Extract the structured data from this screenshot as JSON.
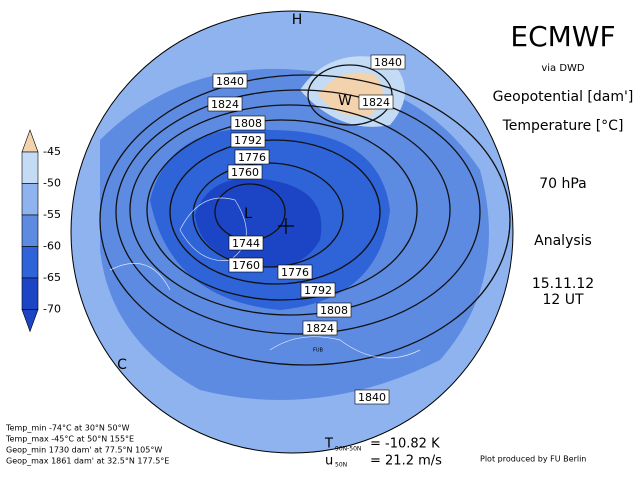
{
  "header": {
    "title": "ECMWF",
    "source": "via DWD",
    "field1": "Geopotential [dam']",
    "field2": "Temperature [°C]",
    "level": "70 hPa",
    "kind": "Analysis",
    "date": "15.11.12",
    "time": "12 UT"
  },
  "legend": {
    "levels": [
      -45,
      -50,
      -55,
      -60,
      -65,
      -70
    ],
    "colors": [
      "#f3d3ad",
      "#c4dbf6",
      "#8fb3ee",
      "#5d8be2",
      "#2f63d8",
      "#1c45c6"
    ]
  },
  "map": {
    "markers": [
      "H",
      "W",
      "L",
      "C"
    ],
    "city": "FUB",
    "contour_labels": [
      "1840",
      "1824",
      "1808",
      "1792",
      "1776",
      "1760",
      "1744",
      "1760",
      "1776",
      "1792",
      "1808",
      "1824",
      "1840",
      "1840",
      "1824"
    ]
  },
  "stats": [
    "Temp_min  -74°C at 30°N 50°W",
    "Temp_max  -45°C at 50°N 155°E",
    "Geop_min 1730 dam' at 77.5°N 105°W",
    "Geop_max 1861 dam' at 32.5°N 177.5°E"
  ],
  "indices": {
    "t_symbol": "T",
    "t_sub": "90N-50N",
    "t_value": "=  -10.82 K",
    "u_symbol": "u",
    "u_sub": "50N",
    "u_value": "=  21.2 m/s"
  },
  "credit": "Plot produced by FU Berlin"
}
